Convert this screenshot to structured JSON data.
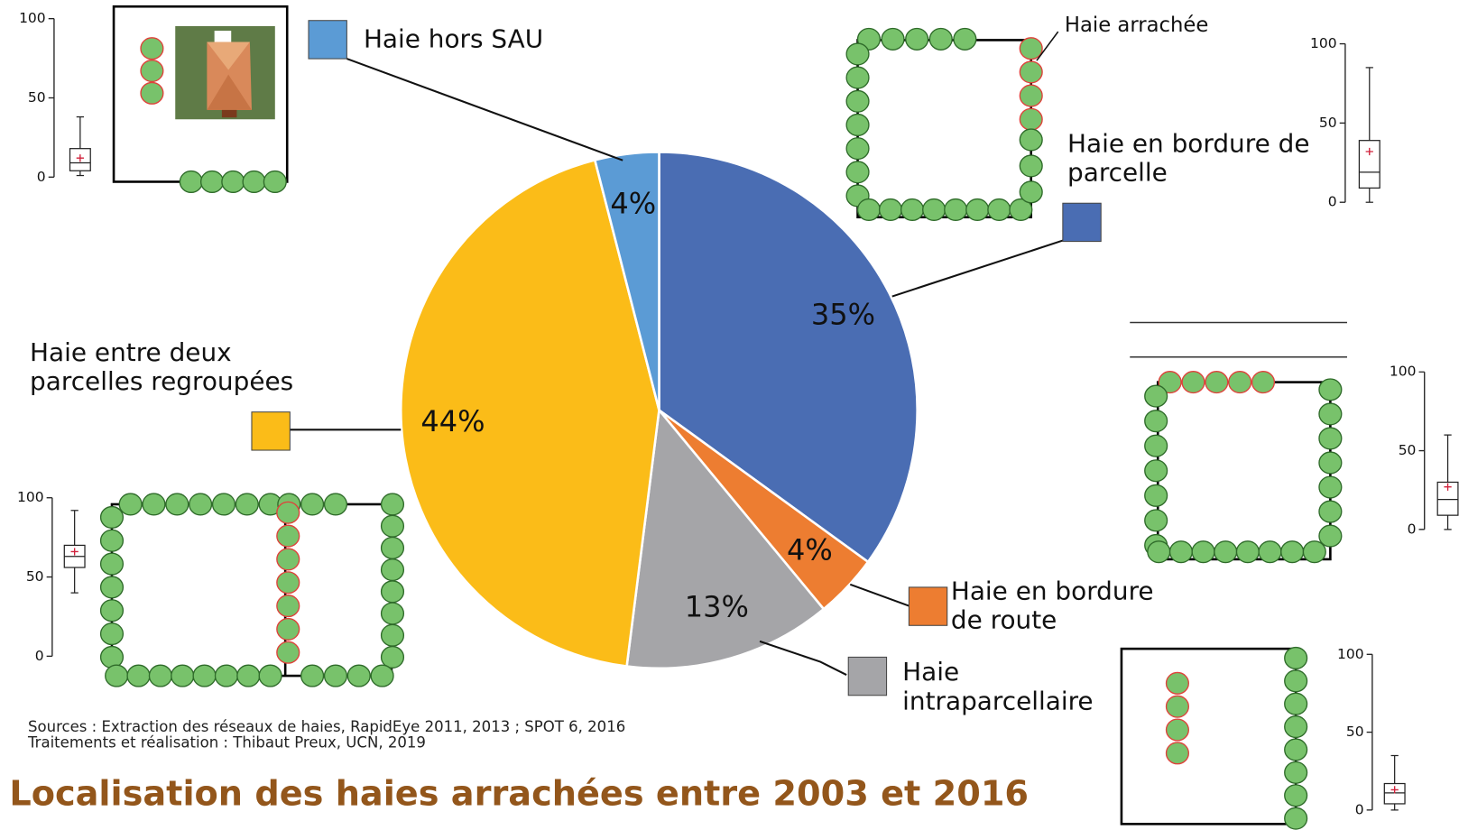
{
  "chart_data": [
    {
      "type": "pie",
      "title": "Localisation des haies arrachées entre 2003 et 2016",
      "categories": [
        "Haie en bordure de parcelle",
        "Haie en bordure de route",
        "Haie intraparcellaire",
        "Haie entre deux parcelles regroupées",
        "Haie hors SAU"
      ],
      "values": [
        35,
        4,
        13,
        44,
        4
      ],
      "value_labels": [
        "35%",
        "4%",
        "13%",
        "44%",
        "4%"
      ],
      "colors": [
        "#4a6db3",
        "#ed7d31",
        "#a5a5a8",
        "#fbbc18",
        "#5b9bd5"
      ],
      "annotation": "Haie arrachée",
      "notes": [
        "Sources : Extraction des réseaux de haies, RapidEye 2011, 2013 ; SPOT 6, 2016",
        "Traitements et réalisation : Thibaut Preux, UCN, 2019"
      ]
    },
    {
      "type": "box",
      "ylim": [
        0,
        100
      ],
      "yticks": [
        0,
        50,
        100
      ],
      "whisker_low": 1,
      "q1": 4,
      "median": 9,
      "q3": 18,
      "whisker_high": 38,
      "mean": 12
    },
    {
      "type": "box",
      "ylim": [
        0,
        100
      ],
      "yticks": [
        0,
        50,
        100
      ],
      "whisker_low": 0,
      "q1": 9,
      "median": 19,
      "q3": 39,
      "whisker_high": 85,
      "mean": 32
    },
    {
      "type": "box",
      "ylim": [
        0,
        100
      ],
      "yticks": [
        0,
        50,
        100
      ],
      "whisker_low": 0,
      "q1": 9,
      "median": 19,
      "q3": 30,
      "whisker_high": 60,
      "mean": 27
    },
    {
      "type": "box",
      "ylim": [
        0,
        100
      ],
      "yticks": [
        0,
        50,
        100
      ],
      "whisker_low": 40,
      "q1": 56,
      "median": 63,
      "q3": 70,
      "whisker_high": 92,
      "mean": 66
    },
    {
      "type": "box",
      "ylim": [
        0,
        100
      ],
      "yticks": [
        0,
        50,
        100
      ],
      "whisker_low": 0,
      "q1": 4,
      "median": 11,
      "q3": 17,
      "whisker_high": 35,
      "mean": 13
    }
  ]
}
